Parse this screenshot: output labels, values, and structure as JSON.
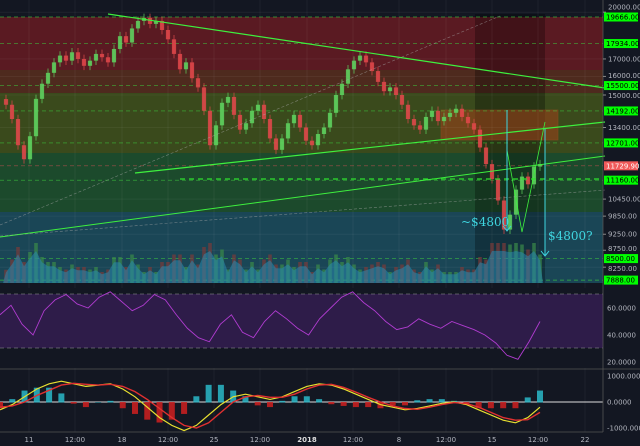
{
  "chart_data": {
    "type": "candlestick",
    "title": "",
    "scale": "log",
    "ylim": [
      7600,
      20000
    ],
    "x_tick_labels": [
      "11",
      "12:00",
      "18",
      "12:00",
      "25",
      "12:00",
      "2018",
      "12:00",
      "8",
      "12:00",
      "15",
      "12:00",
      "22"
    ],
    "price_axis_ticks": [
      "20000.00",
      "17000.00",
      "16000.00",
      "15000.00",
      "13400.00",
      "10450.00",
      "9850.00",
      "9250.00",
      "8750.00",
      "8250.00"
    ],
    "price_axis_tick_values": [
      20000,
      17000,
      16000,
      15000,
      13400,
      10450,
      9850,
      9250,
      8750,
      8250
    ],
    "level_tags": [
      {
        "label": "19666.00",
        "value": 19666,
        "color": "#00ff00"
      },
      {
        "label": "17934.00",
        "value": 17934,
        "color": "#00ff00"
      },
      {
        "label": "15500.00",
        "value": 15500,
        "color": "#00ff00"
      },
      {
        "label": "14192.00",
        "value": 14192,
        "color": "#00ff00"
      },
      {
        "label": "12701.00",
        "value": 12701,
        "color": "#00ff00"
      },
      {
        "label": "11729.90",
        "value": 11729.9,
        "color": "#f05a5a"
      },
      {
        "label": "11160.00",
        "value": 11160,
        "color": "#00ff00"
      },
      {
        "label": "8500.00",
        "value": 8500,
        "color": "#00ff00"
      },
      {
        "label": "7888.00",
        "value": 7888,
        "color": "#00ff00"
      }
    ],
    "closes": [
      14500,
      13800,
      12600,
      12000,
      13000,
      14800,
      15600,
      16200,
      16800,
      17200,
      16900,
      17400,
      17000,
      16600,
      16900,
      17300,
      17100,
      16800,
      17600,
      18400,
      18000,
      18900,
      19400,
      19600,
      19200,
      19400,
      18800,
      18200,
      17300,
      16400,
      16800,
      15900,
      15400,
      14200,
      12600,
      13500,
      14600,
      14900,
      14000,
      13300,
      13600,
      14200,
      14500,
      13800,
      12900,
      12400,
      12900,
      13600,
      14000,
      13400,
      12800,
      12600,
      13100,
      13400,
      14100,
      15000,
      15600,
      16400,
      16900,
      17200,
      16800,
      16300,
      15700,
      15200,
      15400,
      15000,
      14500,
      13800,
      13500,
      13300,
      13900,
      14200,
      13700,
      13900,
      14100,
      14300,
      13900,
      13600,
      13300,
      12500,
      11800,
      11200,
      10400,
      9400,
      9900,
      10800,
      11300,
      11000,
      11700,
      11800
    ],
    "annotations": [
      "~$4800",
      "$4800?"
    ],
    "rsi": {
      "ticks": [
        "60.0000",
        "40.0000",
        "20.0000"
      ],
      "tick_values": [
        60,
        40,
        20
      ],
      "values": [
        55,
        62,
        48,
        40,
        58,
        66,
        70,
        63,
        60,
        68,
        72,
        65,
        58,
        62,
        70,
        66,
        55,
        45,
        38,
        35,
        48,
        55,
        42,
        38,
        50,
        58,
        52,
        45,
        40,
        52,
        60,
        68,
        72,
        64,
        58,
        50,
        44,
        46,
        52,
        48,
        45,
        50,
        47,
        44,
        40,
        34,
        25,
        22,
        35,
        50
      ]
    },
    "macd": {
      "ticks": [
        "1000.0000",
        "0.0000",
        "-1000.0000"
      ],
      "tick_values": [
        1000,
        0,
        -1000
      ],
      "macd": [
        -300,
        -100,
        200,
        500,
        700,
        800,
        700,
        600,
        650,
        700,
        500,
        200,
        -200,
        -600,
        -900,
        -1100,
        -900,
        -500,
        -100,
        200,
        300,
        200,
        100,
        200,
        400,
        600,
        700,
        650,
        500,
        300,
        100,
        -100,
        -200,
        -300,
        -250,
        -150,
        -50,
        0,
        -100,
        -300,
        -500,
        -700,
        -800,
        -600,
        -200
      ],
      "signal": [
        -200,
        -150,
        0,
        250,
        450,
        650,
        720,
        680,
        650,
        680,
        600,
        400,
        100,
        -250,
        -600,
        -900,
        -1000,
        -800,
        -400,
        0,
        200,
        250,
        180,
        180,
        300,
        500,
        650,
        680,
        560,
        380,
        180,
        0,
        -150,
        -250,
        -280,
        -200,
        -100,
        -20,
        -60,
        -200,
        -400,
        -600,
        -700,
        -680,
        -400
      ]
    }
  },
  "colors": {
    "bull": "#5fd35f",
    "bear": "#e0484a",
    "trendline": "#3ef03e",
    "arrow": "#3fd6e0",
    "rsi_line": "#b03cd0"
  }
}
